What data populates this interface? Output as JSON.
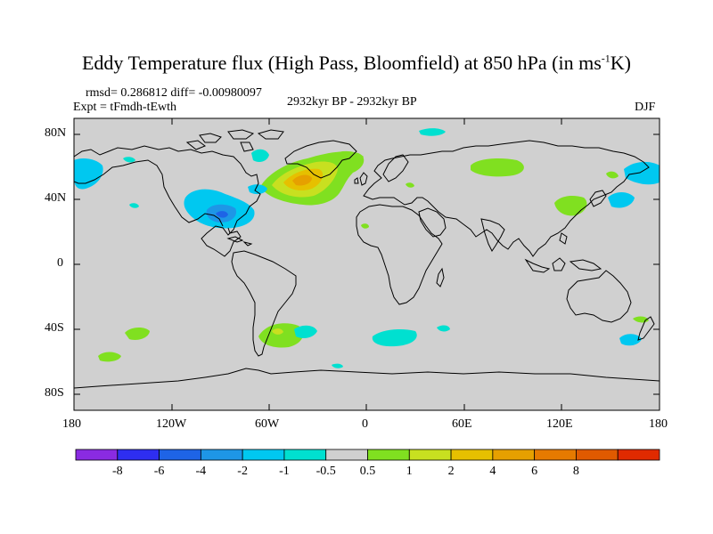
{
  "title": {
    "main": "Eddy Temperature flux (High Pass, Bloomfield) at 850 hPa (in ms",
    "superscript": "-1",
    "suffix": "K)"
  },
  "header": {
    "stats": "rmsd= 0.286812 diff= -0.00980097",
    "experiment": "Expt = tFmdh-tEwth",
    "period": "2932kyr BP - 2932kyr BP",
    "season": "DJF"
  },
  "map": {
    "background_color": "#d0d0d0",
    "coastline_color": "#000000",
    "y_ticks": [
      "80N",
      "40N",
      "0",
      "40S",
      "80S"
    ],
    "x_ticks": [
      "180",
      "120W",
      "60W",
      "0",
      "60E",
      "120E",
      "180"
    ]
  },
  "colorbar": {
    "colors": [
      "#8a2be2",
      "#2e2ef0",
      "#1e64e6",
      "#1e96e6",
      "#00c8f0",
      "#00e0d0",
      "#d0d0d0",
      "#80e020",
      "#c8e020",
      "#e6c000",
      "#e6a000",
      "#e67a00",
      "#e05a00",
      "#e02a00"
    ],
    "labels": [
      "-8",
      "-6",
      "-4",
      "-2",
      "-1",
      "-0.5",
      "0.5",
      "1",
      "2",
      "4",
      "6",
      "8"
    ]
  }
}
